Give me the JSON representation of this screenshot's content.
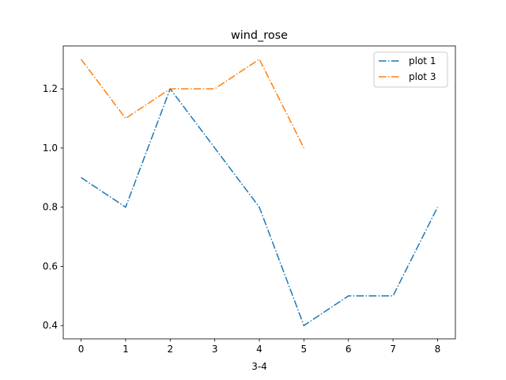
{
  "chart_data": {
    "type": "line",
    "title": "wind_rose",
    "xlabel": "3-4",
    "ylabel": "",
    "xlim": [
      -0.4,
      8.4
    ],
    "ylim": [
      0.355,
      1.345
    ],
    "xticks": [
      0,
      1,
      2,
      3,
      4,
      5,
      6,
      7,
      8
    ],
    "yticks": [
      0.4,
      0.6,
      0.8,
      1.0,
      1.2
    ],
    "ytick_labels": [
      "0.4",
      "0.6",
      "0.8",
      "1.0",
      "1.2"
    ],
    "grid": false,
    "legend_position": "top-right",
    "series": [
      {
        "name": "plot 1",
        "color": "#1f77b4",
        "linestyle": "dashdot",
        "x": [
          0,
          1,
          2,
          3,
          4,
          5,
          6,
          7,
          8
        ],
        "y": [
          0.9,
          0.8,
          1.2,
          1.0,
          0.8,
          0.4,
          0.5,
          0.5,
          0.8
        ]
      },
      {
        "name": "plot 3",
        "color": "#ff7f0e",
        "linestyle": "dashdot",
        "x": [
          0,
          1,
          2,
          3,
          4,
          5
        ],
        "y": [
          1.3,
          1.1,
          1.2,
          1.2,
          1.3,
          1.0
        ]
      }
    ]
  }
}
